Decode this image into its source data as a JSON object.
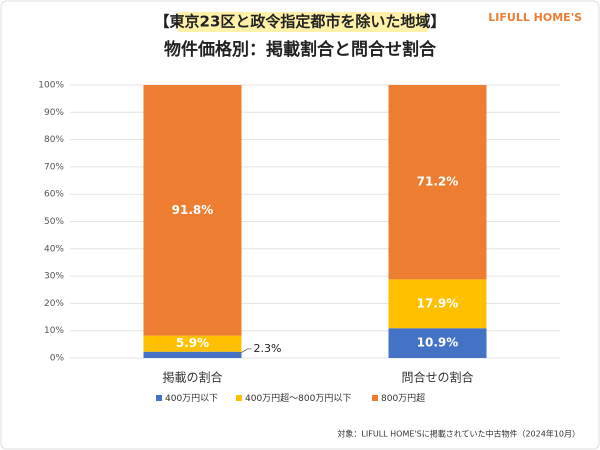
{
  "chart_data": {
    "type": "stacked_bar",
    "logo": "LIFULL HOME'S",
    "title": "【東京23区と政令指定都市を除いた地域】",
    "subtitle": "物件価格別：掲載割合と問合せ割合",
    "categories": [
      "掲載の割合",
      "問合せの割合"
    ],
    "series": [
      {
        "name": "400万円以下",
        "color": "#4472c4",
        "values": [
          2.3,
          10.9
        ],
        "value_labels": [
          "2.3%",
          "10.9%"
        ]
      },
      {
        "name": "400万円超～800万円以下",
        "color": "#ffc000",
        "values": [
          5.9,
          17.9
        ],
        "value_labels": [
          "5.9%",
          "17.9%"
        ]
      },
      {
        "name": "800万円超",
        "color": "#ed7d31",
        "values": [
          91.8,
          71.2
        ],
        "value_labels": [
          "91.8%",
          "71.2%"
        ]
      }
    ],
    "ylim": [
      0,
      100
    ],
    "yticks": [
      {
        "value": 0,
        "label": "0%"
      },
      {
        "value": 10,
        "label": "10%"
      },
      {
        "value": 20,
        "label": "20%"
      },
      {
        "value": 30,
        "label": "30%"
      },
      {
        "value": 40,
        "label": "40%"
      },
      {
        "value": 50,
        "label": "50%"
      },
      {
        "value": 60,
        "label": "60%"
      },
      {
        "value": 70,
        "label": "70%"
      },
      {
        "value": 80,
        "label": "80%"
      },
      {
        "value": 90,
        "label": "90%"
      },
      {
        "value": 100,
        "label": "100%"
      }
    ],
    "grid": true,
    "legend": "bottom",
    "footnote": "対象：LIFULL HOME'Sに掲載されていた中古物件（2024年10月）"
  }
}
